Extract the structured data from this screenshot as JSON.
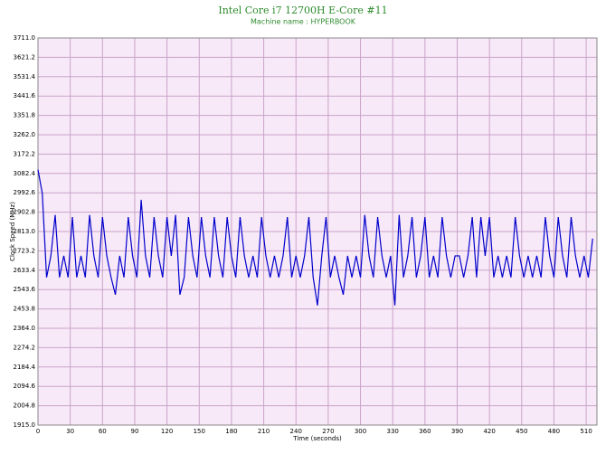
{
  "chart_data": {
    "type": "line",
    "title": "Intel Core i7 12700H E-Core #11",
    "subtitle": "Machine name : HYPERBOOK",
    "x_label": "Time (seconds)",
    "y_label": "Clock Speed (MHz)",
    "grid": true,
    "xlim": [
      0,
      520
    ],
    "xticks": [
      0,
      30,
      60,
      90,
      120,
      150,
      180,
      210,
      240,
      270,
      300,
      330,
      360,
      390,
      420,
      450,
      480,
      510
    ],
    "ylim": [
      1915,
      3711
    ],
    "yticks": [
      {
        "value": 1915,
        "label": "1915.0"
      },
      2004.8,
      2094.6,
      2184.4,
      2274.2,
      {
        "value": 2364,
        "label": "2364.0"
      },
      2453.8,
      2543.6,
      2633.4,
      2723.2,
      {
        "value": 2813,
        "label": "2813.0"
      },
      2902.8,
      2992.6,
      3082.4,
      3172.2,
      {
        "value": 3262,
        "label": "3262.0"
      },
      3351.8,
      3441.6,
      3531.4,
      3621.2,
      {
        "value": 3711,
        "label": "3711.0"
      }
    ],
    "x": [
      0,
      4,
      8,
      12,
      16,
      20,
      24,
      28,
      32,
      36,
      40,
      44,
      48,
      52,
      56,
      60,
      64,
      68,
      72,
      76,
      80,
      84,
      88,
      92,
      96,
      100,
      104,
      108,
      112,
      116,
      120,
      124,
      128,
      132,
      136,
      140,
      144,
      148,
      152,
      156,
      160,
      164,
      168,
      172,
      176,
      180,
      184,
      188,
      192,
      196,
      200,
      204,
      208,
      212,
      216,
      220,
      224,
      228,
      232,
      236,
      240,
      244,
      248,
      252,
      256,
      260,
      264,
      268,
      272,
      276,
      280,
      284,
      288,
      292,
      296,
      300,
      304,
      308,
      312,
      316,
      320,
      324,
      328,
      332,
      336,
      340,
      344,
      348,
      352,
      356,
      360,
      364,
      368,
      372,
      376,
      380,
      384,
      388,
      392,
      396,
      400,
      404,
      408,
      412,
      416,
      420,
      424,
      428,
      432,
      436,
      440,
      444,
      448,
      452,
      456,
      460,
      464,
      468,
      472,
      476,
      480,
      484,
      488,
      492,
      496,
      500,
      504,
      508,
      512,
      516
    ],
    "series": [
      {
        "name": "Clock Speed",
        "color": "#0000cc",
        "values": [
          3100,
          2990,
          2600,
          2700,
          2890,
          2600,
          2700,
          2600,
          2880,
          2600,
          2700,
          2600,
          2890,
          2700,
          2600,
          2880,
          2700,
          2600,
          2520,
          2700,
          2600,
          2880,
          2700,
          2600,
          2960,
          2700,
          2600,
          2880,
          2700,
          2600,
          2880,
          2700,
          2890,
          2520,
          2600,
          2880,
          2700,
          2600,
          2880,
          2700,
          2600,
          2880,
          2700,
          2600,
          2880,
          2700,
          2600,
          2880,
          2700,
          2600,
          2700,
          2600,
          2880,
          2700,
          2600,
          2700,
          2600,
          2700,
          2880,
          2600,
          2700,
          2600,
          2700,
          2880,
          2600,
          2470,
          2700,
          2880,
          2600,
          2700,
          2600,
          2520,
          2700,
          2600,
          2700,
          2600,
          2890,
          2700,
          2600,
          2880,
          2700,
          2600,
          2700,
          2470,
          2890,
          2600,
          2700,
          2880,
          2600,
          2700,
          2880,
          2600,
          2700,
          2600,
          2880,
          2700,
          2600,
          2700,
          2700,
          2600,
          2700,
          2880,
          2600,
          2880,
          2700,
          2880,
          2600,
          2700,
          2600,
          2700,
          2600,
          2880,
          2700,
          2600,
          2700,
          2600,
          2700,
          2600,
          2880,
          2700,
          2600,
          2880,
          2700,
          2600,
          2880,
          2700,
          2600,
          2700,
          2600,
          2780
        ]
      }
    ]
  }
}
